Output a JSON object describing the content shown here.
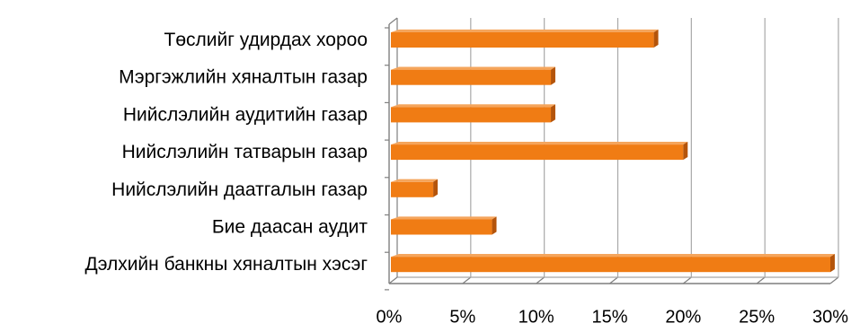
{
  "chart_data": {
    "type": "bar",
    "orientation": "horizontal",
    "style": "3d",
    "categories": [
      "Төслийг удирдах хороо",
      "Мэргэжлийн хяналтын газар",
      "Нийслэлийн аудитийн газар",
      "Нийслэлийн татварын газар",
      "Нийслэлийн даатгалын газар",
      "Бие даасан аудит",
      "Дэлхийн банкны хяналтын хэсэг"
    ],
    "values": [
      18,
      11,
      11,
      20,
      3,
      7,
      30
    ],
    "xlim": [
      0,
      30
    ],
    "x_ticks": [
      "0%",
      "5%",
      "10%",
      "15%",
      "20%",
      "25%",
      "30%"
    ],
    "grid": "vertical",
    "title": "",
    "xlabel": "",
    "ylabel": "",
    "colors": {
      "bar_front": "#F07C14",
      "bar_top": "#F5A55C",
      "bar_side": "#B4540A",
      "grid": "#A8A8A8",
      "axis": "#7F7F7F"
    }
  }
}
